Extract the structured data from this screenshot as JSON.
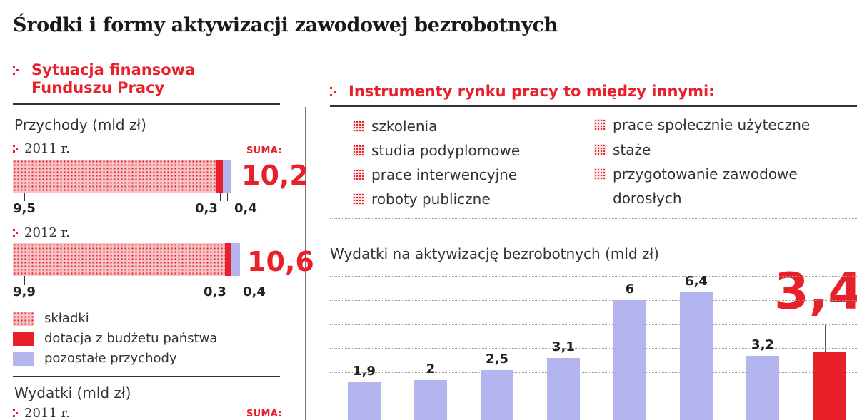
{
  "title": "Środki i formy aktywizacji zawodowej bezrobotnych",
  "colors": {
    "accent": "#e8202a",
    "secondary": "#b4b4ee",
    "text": "#222222"
  },
  "left_section": {
    "heading_line1": "Sytuacja finansowa",
    "heading_line2": "Funduszu Pracy"
  },
  "right_section": {
    "heading": "Instrumenty rynku pracy to między innymi:",
    "instruments_col1": [
      "szkolenia",
      "studia podyplomowe",
      "prace interwencyjne",
      "roboty publiczne"
    ],
    "instruments_col2": [
      "prace społecznie użyteczne",
      "staże",
      "przygotowanie zawodowe",
      "dorosłych"
    ]
  },
  "chart_data": [
    {
      "type": "bar",
      "orientation": "horizontal-stacked",
      "title": "Przychody (mld zł)",
      "total_label": "SUMA:",
      "series_names": [
        "składki",
        "dotacja z budżetu państwa",
        "pozostałe przychody"
      ],
      "series_colors": [
        "#e8202a",
        "#e8202a",
        "#b4b4ee"
      ],
      "rows": [
        {
          "year": "2011 r.",
          "values": [
            9.5,
            0.3,
            0.4
          ],
          "labels": [
            "9,5",
            "0,3",
            "0,4"
          ],
          "total": "10,2"
        },
        {
          "year": "2012 r.",
          "values": [
            9.9,
            0.3,
            0.4
          ],
          "labels": [
            "9,9",
            "0,3",
            "0,4"
          ],
          "total": "10,6"
        }
      ],
      "legend_placement": "bottom-left"
    },
    {
      "type": "bar",
      "orientation": "horizontal-stacked",
      "title": "Wydatki (mld zł)",
      "total_label": "SUMA:",
      "rows": [
        {
          "year": "2011 r."
        }
      ]
    },
    {
      "type": "bar",
      "title": "Wydatki na aktywizację bezrobotnych (mld zł)",
      "values": [
        1.9,
        2,
        2.5,
        3.1,
        6,
        6.4,
        3.2,
        3.4
      ],
      "value_labels": [
        "1,9",
        "2",
        "2,5",
        "3,1",
        "6",
        "6,4",
        "3,2",
        "3,4"
      ],
      "bar_colors": [
        "#b4b4ee",
        "#b4b4ee",
        "#b4b4ee",
        "#b4b4ee",
        "#b4b4ee",
        "#b4b4ee",
        "#b4b4ee",
        "#e8202a"
      ],
      "highlight_label": "3,4",
      "ylim": [
        0,
        7
      ],
      "grid": true
    }
  ]
}
